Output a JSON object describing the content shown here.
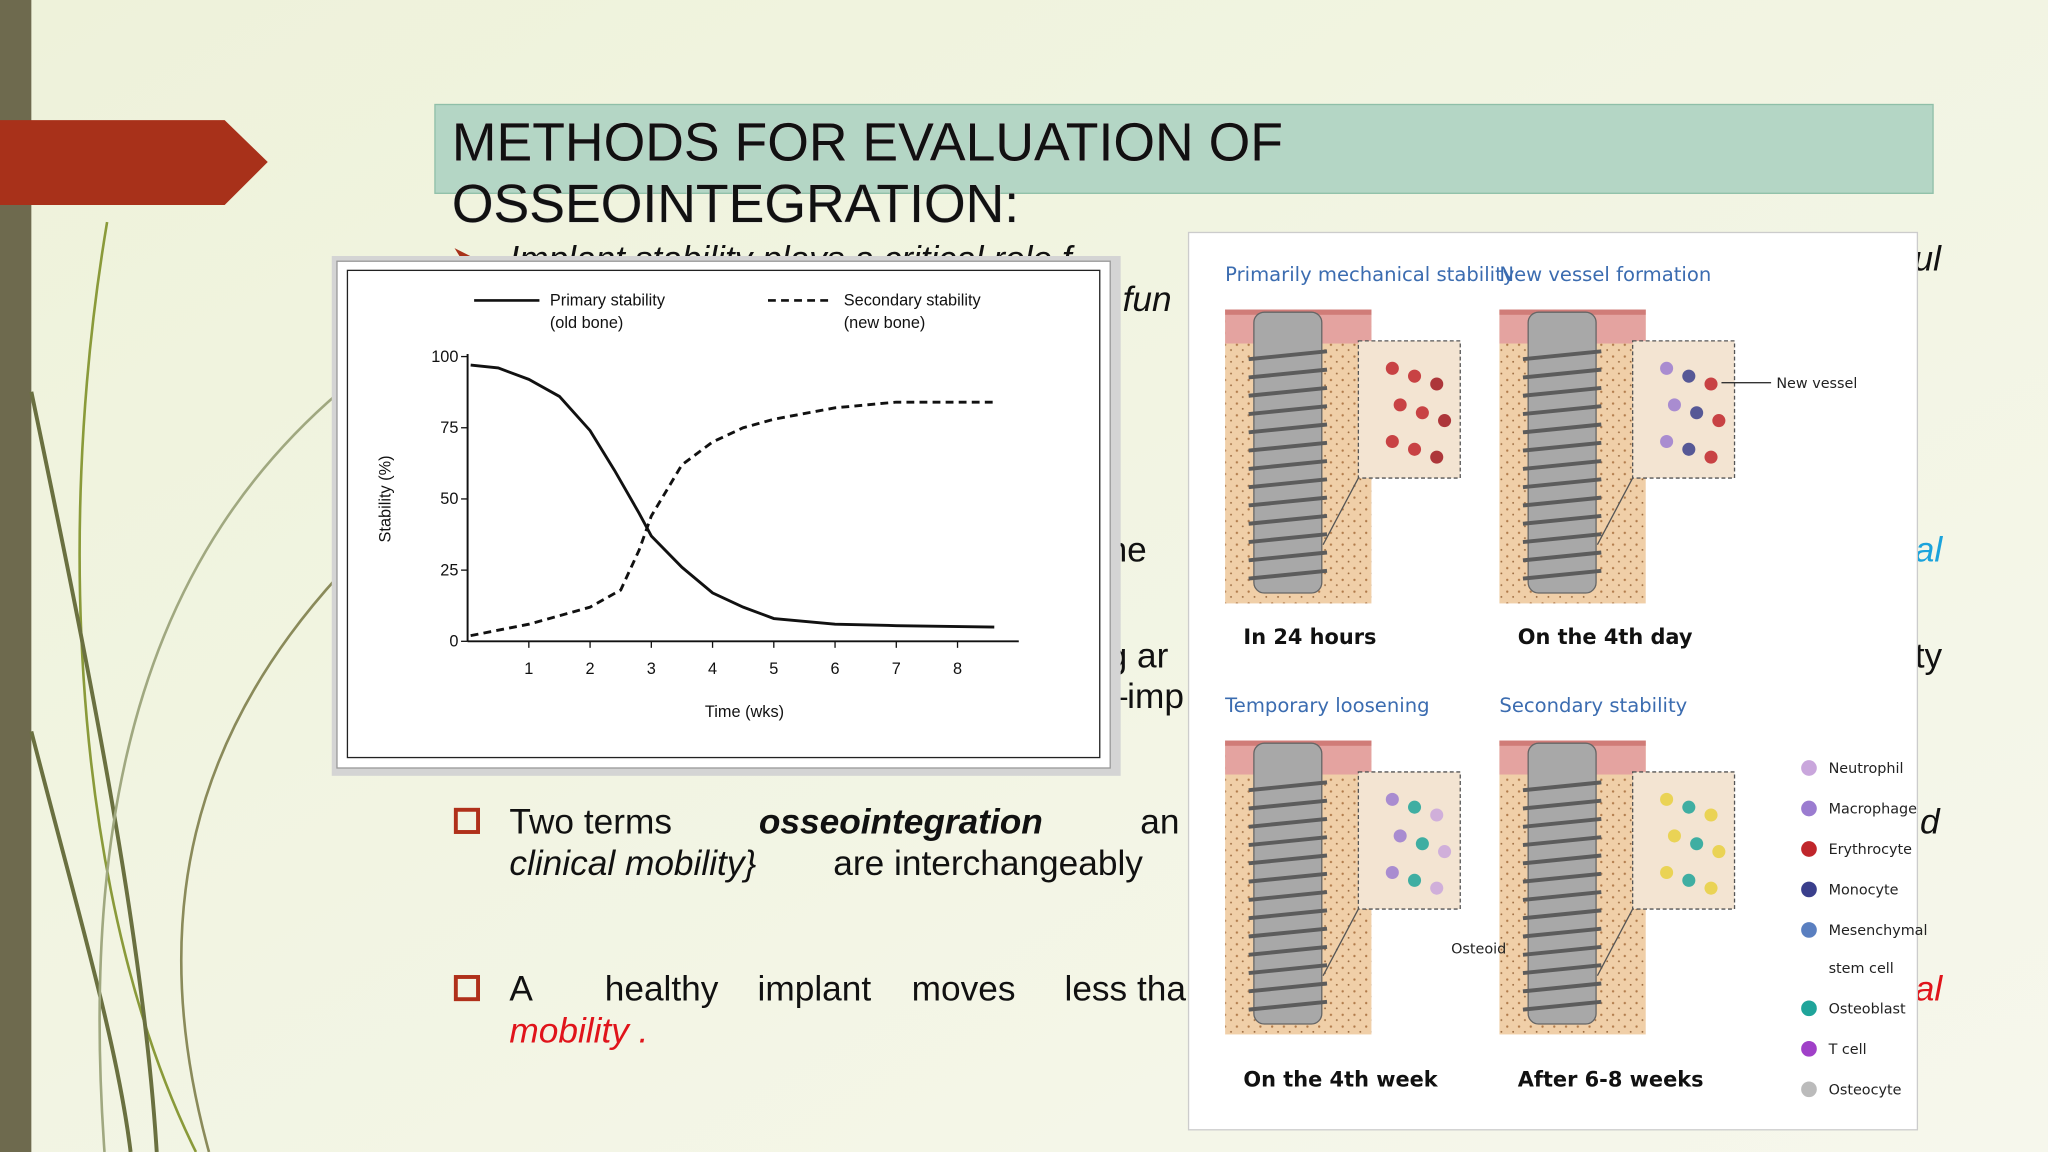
{
  "title": [
    "METHODS FOR EVALUATION OF",
    "OSSEOINTEGRATION:"
  ],
  "text_fragments": [
    "Implant  stability  plays  a  critical  role  f",
    "ul",
    "r fun",
    "he",
    "al",
    "g ar",
    "ty",
    "–imp",
    "Two  terms",
    "osseointegration",
    "an",
    "d",
    "clinical mobility}",
    "are  interchangeably",
    "A",
    "healthy",
    "implant",
    "moves",
    "less tha",
    "al",
    "mobility ."
  ],
  "chart": {
    "type": "line",
    "xlabel": "Time (wks)",
    "ylabel": "Stability (%)",
    "xlim": [
      0,
      9
    ],
    "ylim": [
      0,
      100
    ],
    "xticks": [
      1,
      2,
      3,
      4,
      5,
      6,
      7,
      8
    ],
    "yticks": [
      0,
      25,
      50,
      75,
      100
    ],
    "series": [
      {
        "name": "Primary stability",
        "subname": "(old bone)",
        "style": "solid",
        "color": "#111111",
        "x": [
          0.05,
          0.5,
          1,
          1.5,
          2,
          2.4,
          2.8,
          3,
          3.5,
          4,
          4.5,
          5,
          6,
          7,
          8.6
        ],
        "values": [
          97,
          96,
          92,
          86,
          74,
          60,
          45,
          37,
          26,
          17,
          12,
          8,
          6,
          5.5,
          5
        ]
      },
      {
        "name": "Secondary stability",
        "subname": "(new bone)",
        "style": "dashed",
        "color": "#111111",
        "x": [
          0.05,
          1,
          2,
          2.5,
          2.8,
          3,
          3.5,
          4,
          4.5,
          5,
          6,
          7,
          8.6
        ],
        "values": [
          2,
          6,
          12,
          18,
          32,
          44,
          62,
          70,
          75,
          78,
          82,
          84,
          84
        ]
      }
    ]
  },
  "figure": {
    "panels": [
      {
        "heading": "Primarily mechanical stability",
        "caption": "In 24 hours"
      },
      {
        "heading": "New vessel formation",
        "caption": "On the 4th day"
      },
      {
        "heading": "Temporary loosening",
        "caption": "On the 4th week"
      },
      {
        "heading": "Secondary stability",
        "caption": "After 6-8 weeks"
      }
    ],
    "labels": [
      "New vessel",
      "Osteoid"
    ],
    "legend": [
      {
        "label": [
          "Neutrophil"
        ],
        "color": "#c9a6dc"
      },
      {
        "label": [
          "Macrophage"
        ],
        "color": "#9b7cd0"
      },
      {
        "label": [
          "Erythrocyte"
        ],
        "color": "#c0262b"
      },
      {
        "label": [
          "Monocyte"
        ],
        "color": "#3a3f8c"
      },
      {
        "label": [
          "Mesenchymal",
          "stem cell"
        ],
        "color": "#5a7fc0"
      },
      {
        "label": [
          "Osteoblast"
        ],
        "color": "#1fa49a"
      },
      {
        "label": [
          "T cell"
        ],
        "color": "#a040c8"
      },
      {
        "label": [
          "Osteocyte"
        ],
        "color": "#bbbbbb"
      }
    ]
  }
}
